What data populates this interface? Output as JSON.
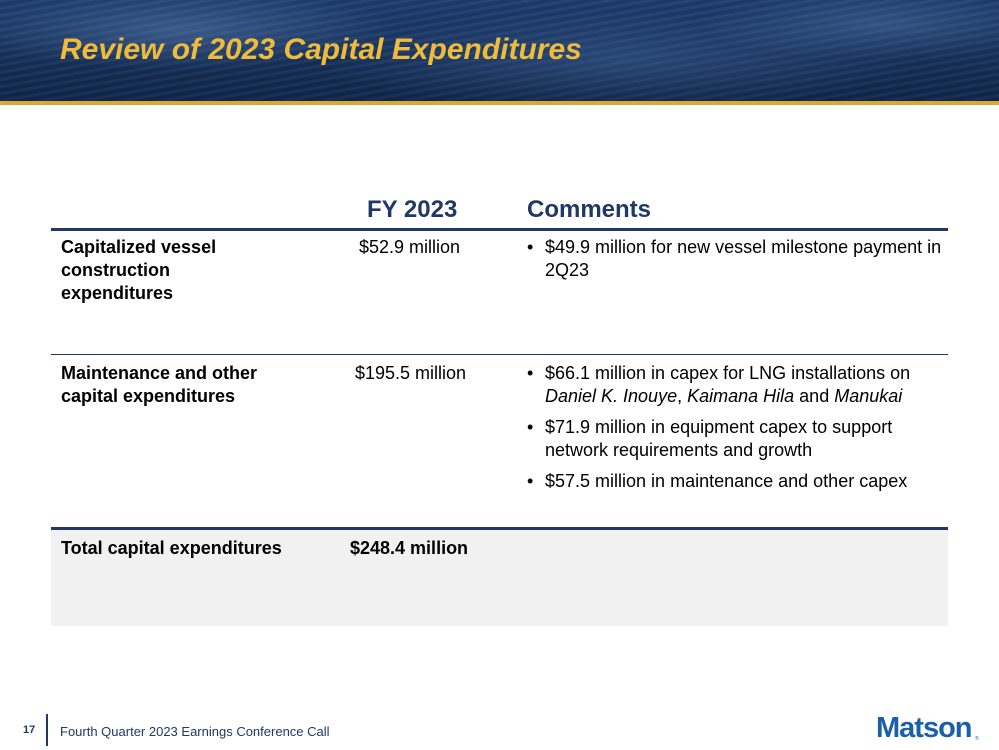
{
  "slide": {
    "title": "Review of 2023 Capital Expenditures",
    "page_number": "17",
    "footer_text": "Fourth Quarter 2023 Earnings Conference Call",
    "logo_text": "Matson",
    "logo_mark": "®"
  },
  "table": {
    "columns": [
      "",
      "FY 2023",
      "Comments"
    ],
    "rows": [
      {
        "label": "Capitalized vessel construction expenditures",
        "value": "$52.9 million",
        "comments": [
          {
            "text": "$49.9 million for new vessel milestone payment in 2Q23"
          }
        ]
      },
      {
        "label": "Maintenance and other capital expenditures",
        "value": "$195.5 million",
        "comments": [
          {
            "pre": "$66.1 million in capex for LNG installations on ",
            "ship1": "Daniel K. Inouye",
            "sep1": ", ",
            "ship2": "Kaimana Hila",
            "sep2": " and ",
            "ship3": "Manukai"
          },
          {
            "text": "$71.9 million in equipment capex to support network requirements and growth"
          },
          {
            "text": "$57.5 million in maintenance and other capex"
          }
        ]
      }
    ],
    "total": {
      "label": "Total capital expenditures",
      "value": "$248.4 million"
    }
  },
  "colors": {
    "title": "#f0bb3a",
    "accent_line": "#d9a936",
    "navy": "#1f3864",
    "logo": "#1b5fa8",
    "total_row_bg": "#f1f1f1"
  }
}
